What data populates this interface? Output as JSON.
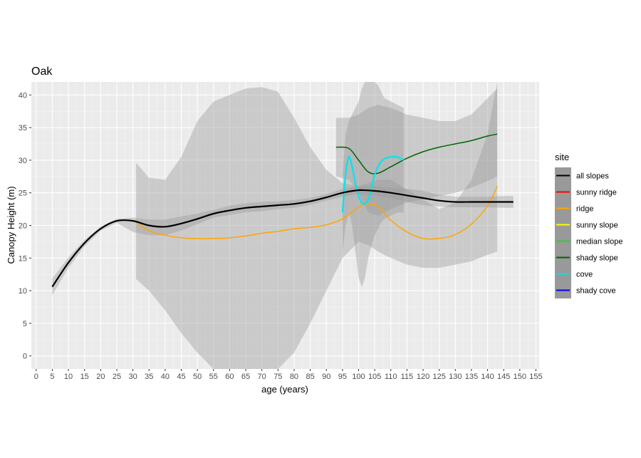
{
  "chart_data": {
    "type": "line",
    "title": "Oak",
    "xlabel": "age (years)",
    "ylabel": "Canopy Height (m)",
    "xlim": [
      -1.5,
      156
    ],
    "ylim": [
      -2,
      42
    ],
    "x_ticks": [
      0,
      5,
      10,
      15,
      20,
      25,
      30,
      35,
      40,
      45,
      50,
      55,
      60,
      65,
      70,
      75,
      80,
      85,
      90,
      95,
      100,
      105,
      110,
      115,
      120,
      125,
      130,
      135,
      140,
      145,
      150,
      155
    ],
    "y_ticks": [
      0,
      5,
      10,
      15,
      20,
      25,
      30,
      35,
      40
    ],
    "grid": true,
    "panel_background": "#ebebeb",
    "legend": {
      "title": "site",
      "position": "right",
      "key_background": "#999999"
    },
    "series": [
      {
        "name": "all slopes",
        "color": "#000000",
        "width": 2.2,
        "x": [
          5,
          10,
          15,
          20,
          25,
          30,
          35,
          40,
          45,
          50,
          55,
          60,
          65,
          70,
          75,
          80,
          85,
          90,
          95,
          100,
          105,
          110,
          115,
          120,
          125,
          130,
          135,
          140,
          145,
          148
        ],
        "y": [
          10.6,
          14.3,
          17.3,
          19.5,
          20.7,
          20.7,
          20.0,
          19.8,
          20.3,
          21.0,
          21.8,
          22.3,
          22.7,
          22.9,
          23.1,
          23.3,
          23.7,
          24.3,
          25.0,
          25.4,
          25.3,
          25.0,
          24.6,
          24.2,
          23.8,
          23.6,
          23.6,
          23.6,
          23.6,
          23.6
        ],
        "band_lower": [
          9.3,
          13.5,
          16.8,
          19.2,
          20.4,
          19.0,
          18.5,
          18.5,
          19.2,
          20.2,
          21.2,
          21.6,
          22.0,
          22.2,
          22.5,
          22.7,
          23.2,
          23.8,
          24.4,
          24.8,
          24.6,
          24.2,
          23.6,
          23.1,
          22.9,
          22.8,
          22.8,
          22.8,
          22.7,
          22.7
        ],
        "band_upper": [
          11.9,
          15.1,
          17.8,
          19.8,
          21.0,
          21.2,
          20.9,
          20.9,
          21.4,
          21.8,
          22.4,
          23.0,
          23.4,
          23.6,
          23.7,
          23.9,
          24.2,
          24.8,
          25.6,
          26.0,
          26.0,
          25.8,
          25.6,
          25.3,
          24.7,
          24.4,
          24.4,
          24.4,
          24.5,
          24.5
        ]
      },
      {
        "name": "sunny ridge",
        "color": "#ff0000",
        "x": [],
        "y": []
      },
      {
        "name": "ridge",
        "color": "#ffa500",
        "width": 1.5,
        "x": [
          31,
          35,
          40,
          45,
          50,
          55,
          60,
          65,
          70,
          75,
          80,
          85,
          90,
          95,
          100,
          103,
          106,
          110,
          115,
          120,
          125,
          130,
          135,
          140,
          143
        ],
        "y": [
          20.5,
          19.2,
          18.5,
          18.1,
          18.0,
          18.0,
          18.1,
          18.4,
          18.8,
          19.1,
          19.5,
          19.7,
          20.1,
          21.0,
          22.8,
          23.3,
          22.9,
          20.8,
          19.0,
          18.0,
          18.0,
          18.6,
          20.2,
          23.0,
          26.0
        ],
        "band_lower": [
          11.8,
          10.0,
          7.0,
          3.5,
          0.5,
          -2,
          -2,
          -2,
          -2,
          -2,
          0.5,
          5.0,
          10.0,
          15.0,
          17.5,
          17.0,
          16.0,
          15.0,
          14.0,
          13.5,
          13.5,
          14.0,
          14.5,
          15.5,
          16.0
        ],
        "band_upper": [
          29.6,
          27.3,
          27.0,
          30.5,
          36.0,
          39.0,
          40.0,
          41.0,
          41.2,
          40.5,
          36.5,
          32.0,
          28.5,
          26.5,
          26.0,
          26.5,
          27.0,
          27.0,
          25.5,
          24.0,
          22.5,
          23.5,
          27.0,
          34.0,
          42.0
        ]
      },
      {
        "name": "sunny slope",
        "color": "#ffff00",
        "x": [],
        "y": []
      },
      {
        "name": "median slope",
        "color": "#32cd32",
        "x": [],
        "y": []
      },
      {
        "name": "shady slope",
        "color": "#006400",
        "width": 1.5,
        "x": [
          93,
          97,
          100,
          103,
          106,
          110,
          115,
          120,
          125,
          130,
          135,
          140,
          143
        ],
        "y": [
          32.0,
          31.8,
          30.0,
          28.2,
          28.0,
          29.0,
          30.3,
          31.3,
          32.0,
          32.5,
          33.0,
          33.7,
          34.0
        ],
        "band_lower": [
          27.5,
          27.0,
          25.0,
          22.0,
          21.5,
          22.5,
          23.5,
          24.0,
          24.5,
          25.0,
          25.8,
          26.8,
          27.5
        ],
        "band_upper": [
          36.5,
          36.5,
          37.0,
          38.0,
          38.5,
          38.0,
          37.0,
          36.5,
          36.0,
          36.0,
          37.0,
          39.5,
          41.0
        ]
      },
      {
        "name": "cove",
        "color": "#00e5ee",
        "width": 2.2,
        "x": [
          95,
          96,
          97,
          98,
          99,
          100,
          101,
          102,
          103,
          104,
          105,
          106,
          107,
          108,
          110,
          112,
          114
        ],
        "y": [
          22.0,
          28.0,
          30.5,
          29.0,
          26.5,
          24.5,
          23.5,
          23.3,
          24.0,
          25.8,
          27.8,
          29.0,
          29.8,
          30.2,
          30.5,
          30.5,
          30.0
        ],
        "band_lower": [
          16.0,
          20.0,
          22.0,
          20.0,
          16.0,
          12.0,
          10.5,
          12.0,
          15.0,
          17.0,
          18.5,
          19.5,
          20.5,
          21.0,
          21.5,
          22.0,
          22.0
        ],
        "band_upper": [
          28.0,
          34.0,
          36.0,
          37.0,
          38.0,
          39.0,
          41.0,
          42.0,
          42.0,
          42.0,
          42.0,
          41.5,
          40.5,
          39.5,
          39.0,
          38.5,
          38.0
        ]
      },
      {
        "name": "shady cove",
        "color": "#0000ff",
        "x": [],
        "y": []
      }
    ]
  }
}
